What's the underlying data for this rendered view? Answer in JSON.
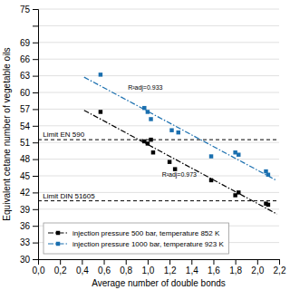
{
  "chart_data": {
    "type": "scatter",
    "x_label": "Average number of double bonds",
    "y_label": "Equivalent cetane number of vegetable oils",
    "xlim": [
      0.0,
      2.2
    ],
    "ylim": [
      30,
      75
    ],
    "xticks": [
      {
        "value": 0.0,
        "label": "0,0"
      },
      {
        "value": 0.2,
        "label": "0,2"
      },
      {
        "value": 0.4,
        "label": "0,4"
      },
      {
        "value": 0.6,
        "label": "0,6"
      },
      {
        "value": 0.8,
        "label": "0,8"
      },
      {
        "value": 1.0,
        "label": "1,0"
      },
      {
        "value": 1.2,
        "label": "1,2"
      },
      {
        "value": 1.4,
        "label": "1,4"
      },
      {
        "value": 1.6,
        "label": "1,6"
      },
      {
        "value": 1.8,
        "label": "1,8"
      },
      {
        "value": 2.0,
        "label": "2,0"
      },
      {
        "value": 2.2,
        "label": "2,2"
      }
    ],
    "yticks": [
      30,
      33,
      36,
      39,
      42,
      45,
      48,
      51,
      54,
      57,
      60,
      63,
      66,
      69,
      {
        "value": 72,
        "label": null
      },
      75
    ],
    "grid": "y",
    "legend": "lower left",
    "series": [
      {
        "name": "injection pressure 500 bar, temperature 852 K",
        "type": "scatter",
        "color": "#000000",
        "marker": "square",
        "line_style": "dashdot",
        "x": [
          0.57,
          0.97,
          1.0,
          1.03,
          1.05,
          1.2,
          1.25,
          1.58,
          1.8,
          1.83,
          2.08,
          2.1
        ],
        "values": [
          56.5,
          51.2,
          50.8,
          51.5,
          49.2,
          47.5,
          46.2,
          44.2,
          41.5,
          42.0,
          40.0,
          39.8
        ]
      },
      {
        "name": "injection pressure 1000 bar, temperature 923 K",
        "type": "scatter",
        "color": "#1a6faf",
        "marker": "square",
        "line_style": "dashdot",
        "x": [
          0.57,
          0.97,
          1.0,
          1.03,
          1.22,
          1.28,
          1.58,
          1.8,
          1.83,
          2.08,
          2.1
        ],
        "values": [
          63.2,
          57.2,
          56.5,
          55.2,
          53.2,
          52.8,
          48.5,
          49.2,
          48.8,
          45.8,
          45.2
        ]
      },
      {
        "type": "line",
        "color": "#000000",
        "line_style": "dashdot",
        "x": [
          0.42,
          2.18
        ],
        "values": [
          56.7944,
          38.126
        ]
      },
      {
        "type": "line",
        "color": "#1a6faf",
        "line_style": "dashdot",
        "x": [
          0.42,
          2.18
        ],
        "values": [
          62.7548,
          44.1315
        ]
      }
    ],
    "hlines": [
      {
        "value": 51.5,
        "label": "Limit EN 590",
        "color": "#000000",
        "line_style": "dashed"
      },
      {
        "value": 40.5,
        "label": "Limit DIN 51605",
        "color": "#000000",
        "line_style": "dashed"
      }
    ],
    "annotations": [
      {
        "text": "R²adj=0.933",
        "x": 0.82,
        "y": 60.5
      },
      {
        "text": "R²adj=0.973",
        "x": 1.13,
        "y": 44.8
      }
    ]
  }
}
